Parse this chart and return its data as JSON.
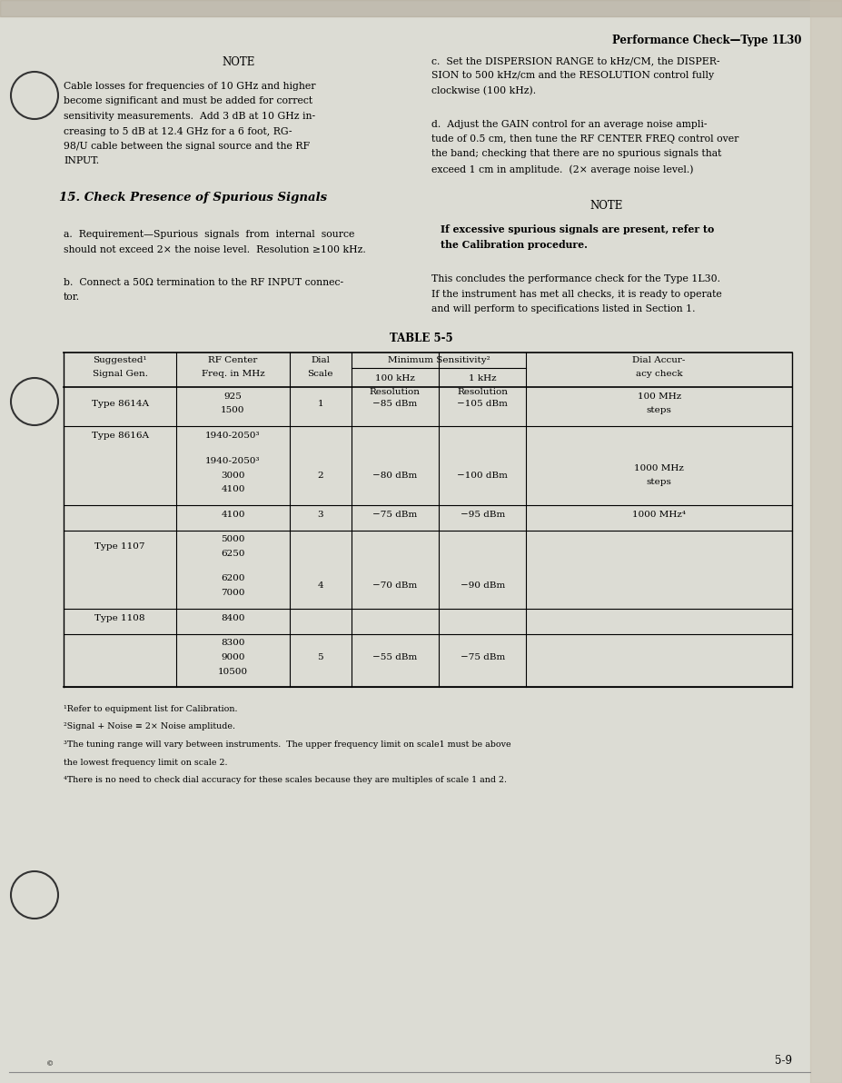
{
  "page_title": "Performance Check—Type 1L30",
  "page_number": "5-9",
  "bg_color": "#dcdcd4",
  "ff": "serif",
  "fs_body": 7.8,
  "fs_note_title": 8.5,
  "fs_section": 9.5,
  "fs_table": 7.5,
  "fs_footnote": 6.8,
  "fs_page": 8.5,
  "left_note_title": "NOTE",
  "left_note_lines": [
    "Cable losses for frequencies of 10 GHz and higher",
    "become significant and must be added for correct",
    "sensitivity measurements.  Add 3 dB at 10 GHz in-",
    "creasing to 5 dB at 12.4 GHz for a 6 foot, RG-",
    "98/U cable between the signal source and the RF",
    "INPUT."
  ],
  "section_title": "15. Check Presence of Spurious Signals",
  "sec_a_lines": [
    "a.  Requirement—Spurious  signals  from  internal  source",
    "should not exceed 2× the noise level.  Resolution ≥100 kHz."
  ],
  "sec_b_lines": [
    "b.  Connect a 50Ω termination to the RF INPUT connec-",
    "tor."
  ],
  "right_c_lines": [
    "c.  Set the DISPERSION RANGE to kHz/CM, the DISPER-",
    "SION to 500 kHz/cm and the RESOLUTION control fully",
    "clockwise (100 kHz)."
  ],
  "right_d_lines": [
    "d.  Adjust the GAIN control for an average noise ampli-",
    "tude of 0.5 cm, then tune the RF CENTER FREQ control over",
    "the band; checking that there are no spurious signals that",
    "exceed 1 cm in amplitude.  (2× average noise level.)"
  ],
  "right_note_title": "NOTE",
  "right_note_lines": [
    "If excessive spurious signals are present, refer to",
    "the Calibration procedure."
  ],
  "concl_lines": [
    "This concludes the performance check for the Type 1L30.",
    "If the instrument has met all checks, it is ready to operate",
    "and will perform to specifications listed in Section 1."
  ],
  "table_title": "TABLE 5-5",
  "col_headers": [
    "Suggested¹\nSignal Gen.",
    "RF Center\nFreq. in MHz",
    "Dial\nScale",
    "100 kHz\nResolution",
    "1 kHz\nResolution",
    "Dial Accur-\nacy check"
  ],
  "min_sens_label": "Minimum Sensitivity²",
  "rows": [
    {
      "sg": "Type 8614A",
      "freq": "925\n1500",
      "ds": "1",
      "s100": "−85 dBm",
      "s1k": "−105 dBm",
      "dac": "100 MHz\nsteps",
      "sep": true
    },
    {
      "sg": "Type 8616A",
      "freq": "1940-2050³",
      "ds": "",
      "s100": "",
      "s1k": "",
      "dac": "",
      "sep": false
    },
    {
      "sg": "",
      "freq": "1940-2050³\n3000\n4100",
      "ds": "2",
      "s100": "−80 dBm",
      "s1k": "−100 dBm",
      "dac": "1000 MHz\nsteps",
      "sep": true
    },
    {
      "sg": "",
      "freq": "4100",
      "ds": "3",
      "s100": "−75 dBm",
      "s1k": "−95 dBm",
      "dac": "1000 MHz⁴",
      "sep": true
    },
    {
      "sg": "Type 1107",
      "freq": "5000\n6250",
      "ds": "",
      "s100": "",
      "s1k": "",
      "dac": "",
      "sep": false
    },
    {
      "sg": "",
      "freq": "6200\n7000",
      "ds": "4",
      "s100": "−70 dBm",
      "s1k": "−90 dBm",
      "dac": "",
      "sep": true
    },
    {
      "sg": "Type 1108",
      "freq": "8400",
      "ds": "",
      "s100": "",
      "s1k": "",
      "dac": "",
      "sep": true
    },
    {
      "sg": "",
      "freq": "8300\n9000\n10500",
      "ds": "5",
      "s100": "−55 dBm",
      "s1k": "−75 dBm",
      "dac": "",
      "sep": true
    }
  ],
  "footnotes": [
    "¹Refer to equipment list for Calibration.",
    "²Signal + Noise ≡ 2× Noise amplitude.",
    "³The tuning range will vary between instruments.  The upper frequency limit on scale1 must be above",
    "the lowest frequency limit on scale 2.",
    "⁴There is no need to check dial accuracy for these scales because they are multiples of scale 1 and 2."
  ]
}
